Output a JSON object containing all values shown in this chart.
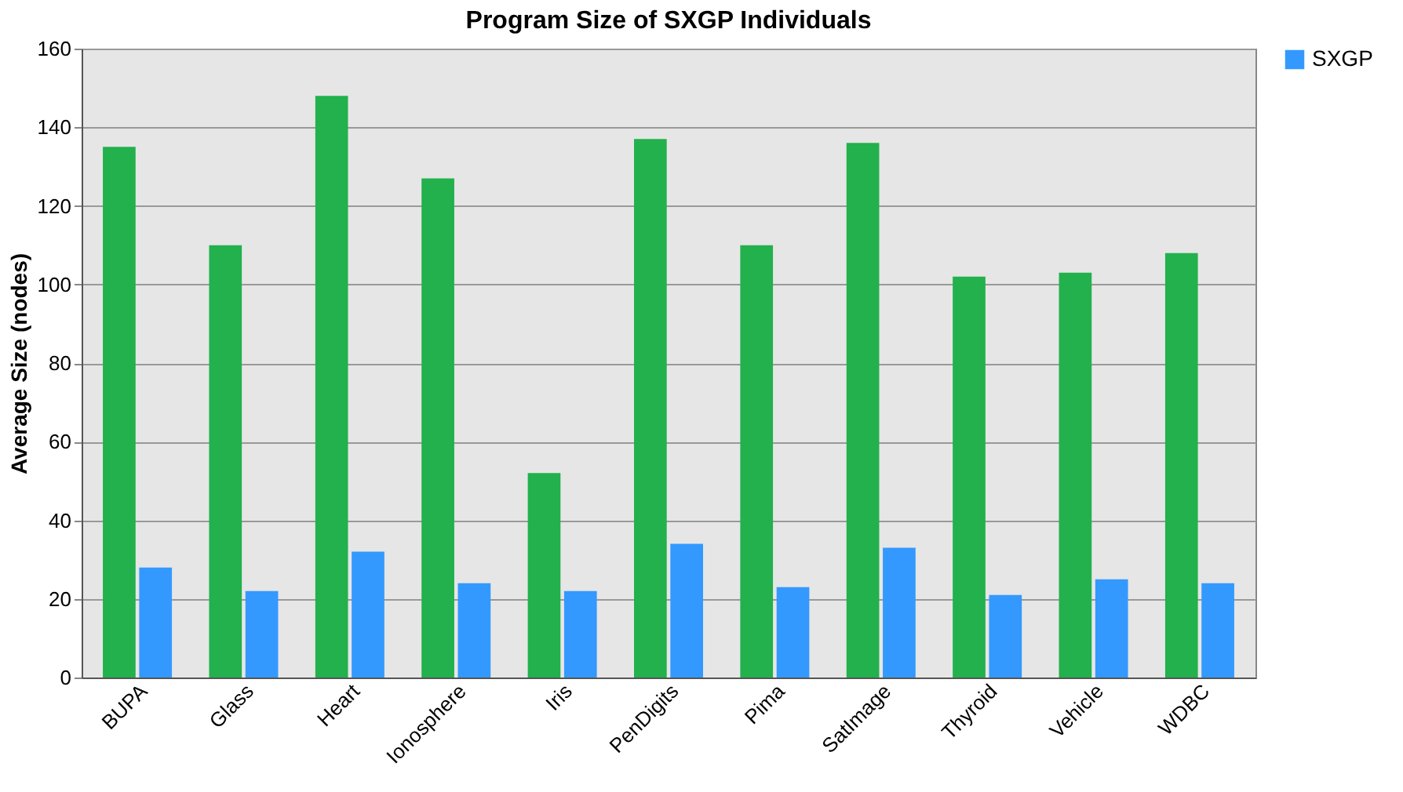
{
  "chart_data": {
    "type": "bar",
    "title": "Program Size of SXGP Individuals",
    "ylabel": "Average Size (nodes)",
    "categories": [
      "BUPA",
      "Glass",
      "Heart",
      "Ionosphere",
      "Iris",
      "PenDigits",
      "Pima",
      "SatImage",
      "Thyroid",
      "Vehicle",
      "WDBC"
    ],
    "series": [
      {
        "color": "#22b14c",
        "values": [
          135,
          110,
          148,
          127,
          52,
          137,
          110,
          136,
          102,
          103,
          108
        ]
      },
      {
        "name": "SXGP",
        "color": "#3399ff",
        "values": [
          28,
          22,
          32,
          24,
          22,
          34,
          23,
          33,
          21,
          25,
          24
        ]
      }
    ],
    "ylim": [
      0,
      160
    ],
    "yticks": [
      0,
      20,
      40,
      60,
      80,
      100,
      120,
      140,
      160
    ],
    "grid": "y",
    "legend": "right"
  }
}
